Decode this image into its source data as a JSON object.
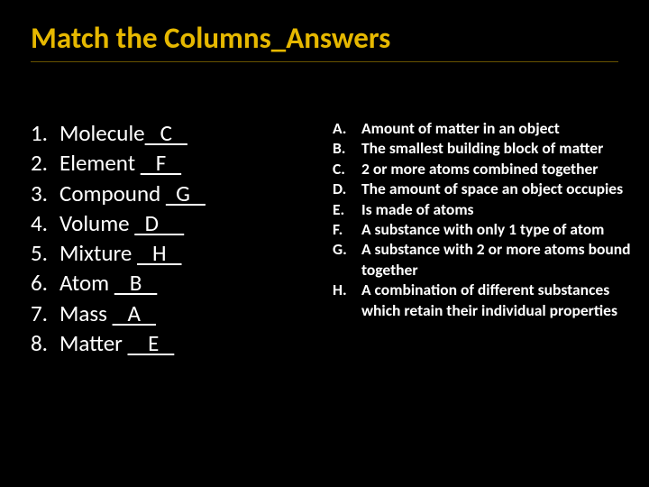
{
  "colors": {
    "background": "#000000",
    "title": "#e6b800",
    "text": "#ffffff"
  },
  "title": "Match the Columns_Answers",
  "fonts": {
    "title_size": 33,
    "left_size": 25,
    "right_size": 17.5,
    "title_weight": 700,
    "left_weight": 400,
    "right_weight": 700
  },
  "left_items": [
    {
      "num": "1.",
      "term": "Molecule",
      "ans_pre": "",
      "ans": "   C   "
    },
    {
      "num": "2.",
      "term": "Element ",
      "ans_pre": "",
      "ans": "   F   "
    },
    {
      "num": "3.",
      "term": "Compound ",
      "ans_pre": "",
      "ans": "  G   "
    },
    {
      "num": "4.",
      "term": "Volume ",
      "ans_pre": "",
      "ans": "  D     "
    },
    {
      "num": "5.",
      "term": "Mixture ",
      "ans_pre": "",
      "ans": "   H   "
    },
    {
      "num": "6.",
      "term": "Atom ",
      "ans_pre": "",
      "ans": "   B   "
    },
    {
      "num": "7.",
      "term": "Mass ",
      "ans_pre": "",
      "ans": "   A   "
    },
    {
      "num": "8.",
      "term": "Matter ",
      "ans_pre": "",
      "ans": "    E   "
    }
  ],
  "right_items": [
    {
      "letter": "A.",
      "def": "Amount of matter in an object"
    },
    {
      "letter": "B.",
      "def": "The smallest building block of matter"
    },
    {
      "letter": "C.",
      "def": "2 or more atoms combined together"
    },
    {
      "letter": "D.",
      "def": "The amount of space an object occupies"
    },
    {
      "letter": "E.",
      "def": "Is made of atoms"
    },
    {
      "letter": "F.",
      "def": "A substance with only 1 type of atom"
    },
    {
      "letter": "G.",
      "def": "A substance with 2 or more atoms bound together"
    },
    {
      "letter": "H.",
      "def": "A combination of different substances which retain their individual properties"
    }
  ]
}
